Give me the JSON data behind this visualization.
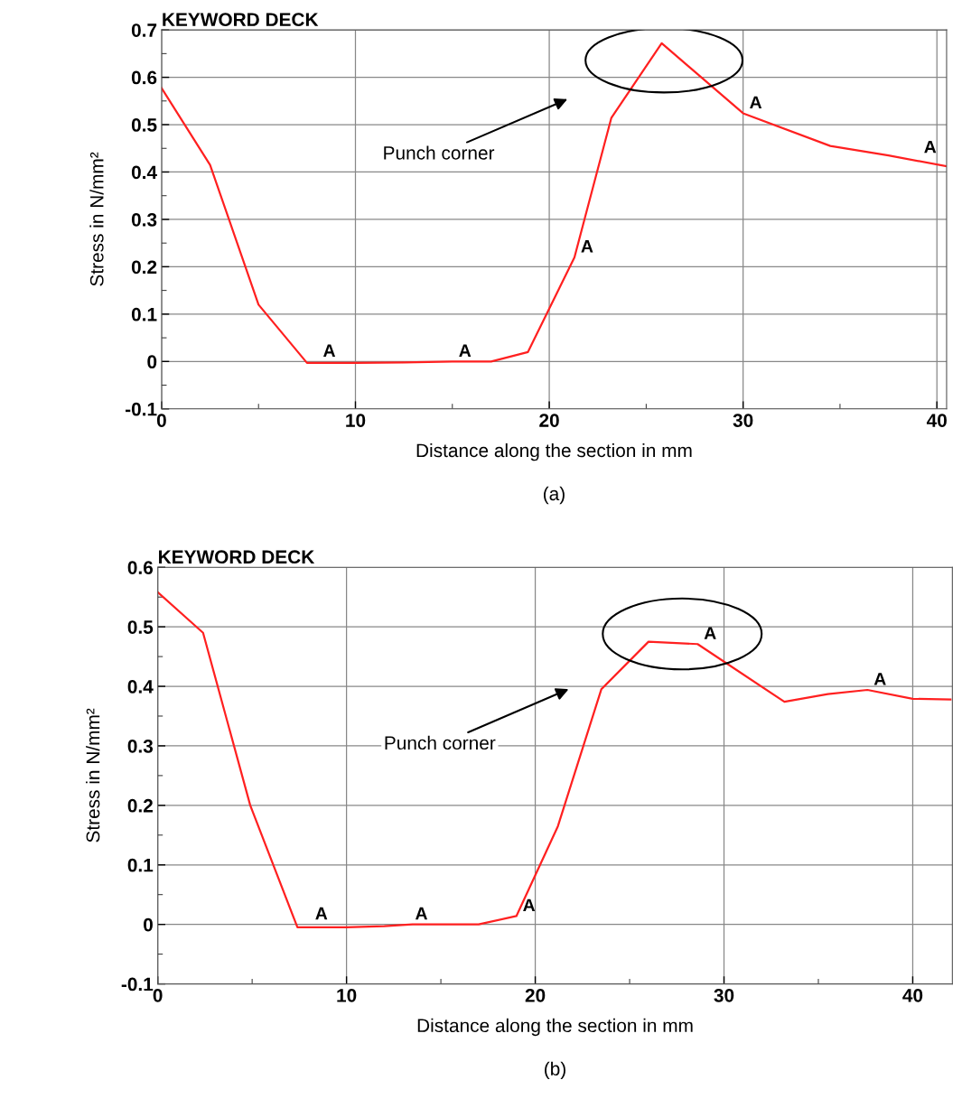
{
  "chart_data": [
    {
      "type": "line",
      "title": "KEYWORD DECK",
      "xlabel": "Distance along the section in mm",
      "ylabel": "Stress in N/mm²",
      "x": [
        0,
        2.5,
        5,
        7.5,
        10,
        12.5,
        15,
        17,
        18.9,
        21.3,
        23.2,
        25.8,
        30,
        34.5,
        37.5,
        40.5
      ],
      "series": [
        {
          "color": "#ff2020",
          "values": [
            0.577,
            0.415,
            0.12,
            -0.003,
            -0.003,
            -0.002,
            0.0,
            0.0,
            0.02,
            0.22,
            0.514,
            0.672,
            0.524,
            0.455,
            0.435,
            0.412
          ]
        }
      ],
      "xlim": [
        0,
        40.5
      ],
      "ylim": [
        -0.1,
        0.7
      ],
      "xticks": [
        0,
        10,
        20,
        30,
        40
      ],
      "yticks": [
        -0.1,
        0,
        0.1,
        0.2,
        0.3,
        0.4,
        0.5,
        0.6,
        0.7
      ],
      "grid": true,
      "line_style": "solid",
      "marker": "none",
      "annotations": [
        "(a)",
        "Punch corner",
        {
          "text": "A",
          "x": 8,
          "y": 0.0
        },
        {
          "text": "A",
          "x": 15,
          "y": 0.0
        },
        {
          "text": "A",
          "x": 21.3,
          "y": 0.22
        },
        {
          "text": "A",
          "x": 30,
          "y": 0.524
        },
        {
          "text": "A",
          "x": 39,
          "y": 0.43
        }
      ]
    },
    {
      "type": "line",
      "title": "KEYWORD DECK",
      "xlabel": "Distance along the section in mm",
      "ylabel": "Stress in N/mm²",
      "x": [
        0,
        2.4,
        4.9,
        7.4,
        10,
        12,
        13.5,
        17,
        19.0,
        21.2,
        23.5,
        26.0,
        28.6,
        33.2,
        35.5,
        37.6,
        40,
        42
      ],
      "series": [
        {
          "color": "#ff2020",
          "values": [
            0.558,
            0.49,
            0.2,
            -0.005,
            -0.005,
            -0.003,
            0.0,
            0.0,
            0.014,
            0.165,
            0.395,
            0.475,
            0.471,
            0.374,
            0.387,
            0.394,
            0.379,
            0.378
          ]
        }
      ],
      "xlim": [
        0,
        42.1
      ],
      "ylim": [
        -0.1,
        0.6
      ],
      "xticks": [
        0,
        10,
        20,
        30,
        40
      ],
      "yticks": [
        -0.1,
        0,
        0.1,
        0.2,
        0.3,
        0.4,
        0.5,
        0.6
      ],
      "grid": true,
      "line_style": "solid",
      "marker": "none",
      "annotations": [
        "(b)",
        "Punch corner",
        {
          "text": "A",
          "x": 8,
          "y": 0.0
        },
        {
          "text": "A",
          "x": 13.3,
          "y": 0.0
        },
        {
          "text": "A",
          "x": 19.0,
          "y": 0.014
        },
        {
          "text": "A",
          "x": 28.6,
          "y": 0.471
        },
        {
          "text": "A",
          "x": 37.6,
          "y": 0.394
        }
      ]
    }
  ]
}
